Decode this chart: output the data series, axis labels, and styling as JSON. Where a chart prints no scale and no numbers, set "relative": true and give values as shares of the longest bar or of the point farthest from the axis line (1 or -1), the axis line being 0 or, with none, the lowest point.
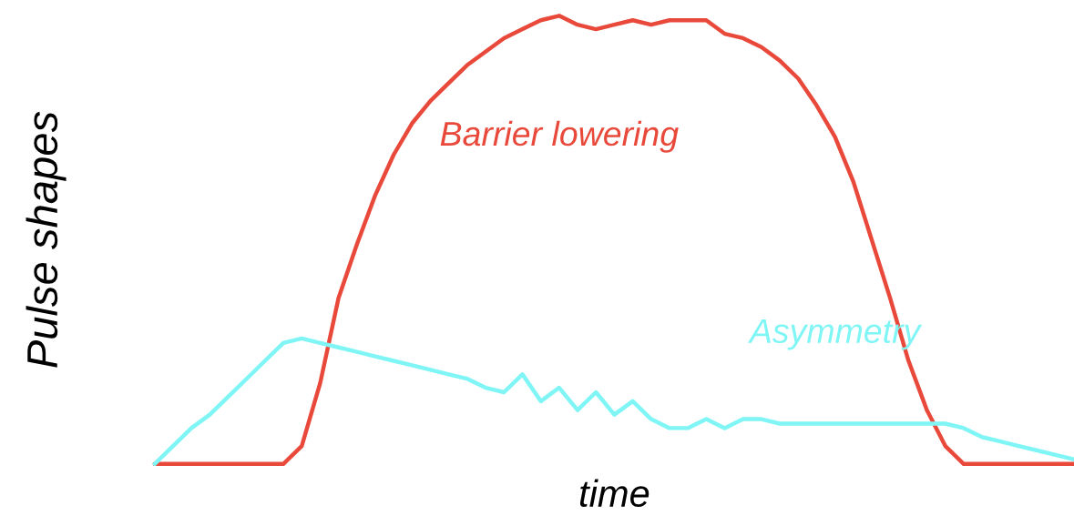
{
  "chart_data": {
    "type": "line",
    "relative": true,
    "xlabel": "time",
    "ylabel": "Pulse shapes",
    "marker": "none",
    "line_style": "solid",
    "categories": [
      null,
      null,
      null,
      null,
      null,
      null,
      null,
      null,
      null,
      null,
      null,
      null,
      null,
      null,
      null,
      null,
      null,
      null,
      null,
      null,
      null,
      null,
      null,
      null,
      null,
      null,
      null,
      null,
      null,
      null,
      null,
      null,
      null,
      null,
      null,
      null,
      null,
      null,
      null,
      null,
      null,
      null,
      null,
      null,
      null,
      null,
      null,
      null,
      null,
      null,
      null
    ],
    "series": [
      {
        "name": "Barrier lowering",
        "color": "#e8493a",
        "values": [
          0,
          0,
          0,
          0,
          0,
          0,
          0,
          0,
          0.04,
          0.18,
          0.37,
          0.49,
          0.6,
          0.69,
          0.76,
          0.81,
          0.85,
          0.89,
          0.92,
          0.95,
          0.97,
          0.99,
          1,
          0.98,
          0.97,
          0.98,
          0.99,
          0.98,
          0.99,
          0.99,
          0.99,
          0.96,
          0.95,
          0.93,
          0.9,
          0.86,
          0.8,
          0.73,
          0.63,
          0.5,
          0.37,
          0.23,
          0.12,
          0.04,
          0,
          0,
          0,
          0,
          0,
          0,
          0
        ]
      },
      {
        "name": "Asymmetry",
        "color": "#7ff5f5",
        "values": [
          0,
          0.04,
          0.08,
          0.11,
          0.15,
          0.19,
          0.23,
          0.27,
          0.28,
          0.27,
          0.26,
          0.25,
          0.24,
          0.23,
          0.22,
          0.21,
          0.2,
          0.19,
          0.17,
          0.16,
          0.2,
          0.14,
          0.17,
          0.12,
          0.16,
          0.11,
          0.14,
          0.1,
          0.08,
          0.08,
          0.1,
          0.08,
          0.1,
          0.1,
          0.09,
          0.09,
          0.09,
          0.09,
          0.09,
          0.09,
          0.09,
          0.09,
          0.09,
          0.09,
          0.08,
          0.06,
          0.05,
          0.04,
          0.03,
          0.02,
          0.01
        ]
      }
    ]
  }
}
